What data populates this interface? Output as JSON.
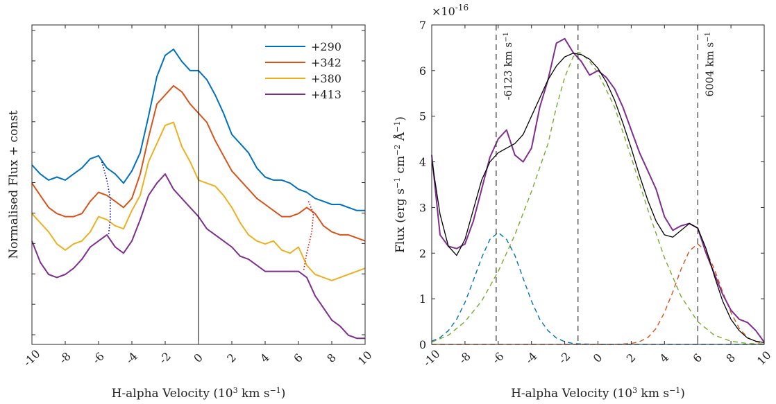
{
  "chart_data": [
    {
      "type": "line",
      "xlabel": "H-alpha Velocity (10",
      "xlabel_sup": "3",
      "xlabel_tail": " km s",
      "xlabel_sup2": "−1",
      "xlabel_end": ")",
      "ylabel": "Normalised Flux + const",
      "xlim": [
        -10,
        10
      ],
      "xticks": [
        "-10",
        "-8",
        "-6",
        "-4",
        "-2",
        "0",
        "2",
        "4",
        "6",
        "8",
        "10"
      ],
      "legend_position": "top-right",
      "grid": false,
      "series": [
        {
          "name": "+290",
          "color": "#0072BD",
          "x": [
            -10,
            -9.5,
            -9,
            -8.5,
            -8,
            -7.5,
            -7,
            -6.5,
            -6,
            -5.5,
            -5,
            -4.5,
            -4,
            -3.5,
            -3,
            -2.5,
            -2,
            -1.5,
            -1,
            -0.5,
            0,
            0.5,
            1,
            1.5,
            2,
            2.5,
            3,
            3.5,
            4,
            4.5,
            5,
            5.5,
            6,
            6.5,
            7,
            7.5,
            8,
            8.5,
            9,
            9.5,
            10
          ],
          "y": [
            0.39,
            0.36,
            0.34,
            0.35,
            0.34,
            0.36,
            0.38,
            0.41,
            0.42,
            0.38,
            0.36,
            0.33,
            0.37,
            0.43,
            0.55,
            0.68,
            0.75,
            0.77,
            0.73,
            0.7,
            0.7,
            0.67,
            0.62,
            0.56,
            0.49,
            0.46,
            0.43,
            0.38,
            0.35,
            0.34,
            0.34,
            0.33,
            0.31,
            0.3,
            0.28,
            0.27,
            0.26,
            0.26,
            0.25,
            0.24,
            0.24
          ]
        },
        {
          "name": "+342",
          "color": "#D95319",
          "x": [
            -10,
            -9.5,
            -9,
            -8.5,
            -8,
            -7.5,
            -7,
            -6.5,
            -6,
            -5.5,
            -5,
            -4.5,
            -4,
            -3.5,
            -3,
            -2.5,
            -2,
            -1.5,
            -1,
            -0.5,
            0,
            0.5,
            1,
            1.5,
            2,
            2.5,
            3,
            3.5,
            4,
            4.5,
            5,
            5.5,
            6,
            6.5,
            7,
            7.5,
            8,
            8.5,
            9,
            9.5,
            10
          ],
          "y": [
            0.33,
            0.29,
            0.25,
            0.23,
            0.22,
            0.22,
            0.23,
            0.27,
            0.3,
            0.29,
            0.27,
            0.25,
            0.28,
            0.36,
            0.48,
            0.59,
            0.62,
            0.65,
            0.63,
            0.59,
            0.56,
            0.53,
            0.47,
            0.42,
            0.37,
            0.34,
            0.31,
            0.28,
            0.26,
            0.24,
            0.22,
            0.22,
            0.23,
            0.25,
            0.23,
            0.19,
            0.17,
            0.16,
            0.16,
            0.15,
            0.14
          ]
        },
        {
          "name": "+380",
          "color": "#EDB120",
          "x": [
            -10,
            -9.5,
            -9,
            -8.5,
            -8,
            -7.5,
            -7,
            -6.5,
            -6,
            -5.5,
            -5,
            -4.5,
            -4,
            -3.5,
            -3,
            -2.5,
            -2,
            -1.5,
            -1,
            -0.5,
            0,
            0.5,
            1,
            1.5,
            2,
            2.5,
            3,
            3.5,
            4,
            4.5,
            5,
            5.5,
            6,
            6.5,
            7,
            7.5,
            8,
            8.5,
            9,
            9.5,
            10
          ],
          "y": [
            0.23,
            0.2,
            0.17,
            0.13,
            0.11,
            0.13,
            0.14,
            0.17,
            0.22,
            0.21,
            0.19,
            0.18,
            0.24,
            0.29,
            0.4,
            0.46,
            0.52,
            0.53,
            0.45,
            0.4,
            0.34,
            0.33,
            0.32,
            0.29,
            0.25,
            0.2,
            0.16,
            0.14,
            0.13,
            0.14,
            0.11,
            0.1,
            0.12,
            0.06,
            0.03,
            0.02,
            0.01,
            0.02,
            0.03,
            0.04,
            0.05
          ]
        },
        {
          "name": "+413",
          "color": "#7E2F8E",
          "x": [
            -10,
            -9.5,
            -9,
            -8.5,
            -8,
            -7.5,
            -7,
            -6.5,
            -6,
            -5.5,
            -5,
            -4.5,
            -4,
            -3.5,
            -3,
            -2.5,
            -2,
            -1.5,
            -1,
            -0.5,
            0,
            0.5,
            1,
            1.5,
            2,
            2.5,
            3,
            3.5,
            4,
            4.5,
            5,
            5.5,
            6,
            6.5,
            7,
            7.5,
            8,
            8.5,
            9,
            9.5,
            10
          ],
          "y": [
            0.14,
            0.07,
            0.03,
            0.02,
            0.03,
            0.05,
            0.08,
            0.12,
            0.14,
            0.16,
            0.12,
            0.1,
            0.14,
            0.21,
            0.29,
            0.33,
            0.36,
            0.31,
            0.28,
            0.25,
            0.22,
            0.18,
            0.16,
            0.14,
            0.12,
            0.09,
            0.08,
            0.06,
            0.04,
            0.04,
            0.04,
            0.04,
            0.04,
            0.02,
            -0.04,
            -0.08,
            -0.12,
            -0.14,
            -0.17,
            -0.18,
            -0.18
          ]
        }
      ],
      "markers": [
        {
          "color": "#0000CC",
          "x": [
            -5.8,
            -5.5,
            -5.3,
            -5.3,
            -5.4
          ],
          "y": [
            0.4,
            0.34,
            0.28,
            0.21,
            0.16
          ]
        },
        {
          "color": "#DD0000",
          "x": [
            6.6,
            6.9,
            6.8,
            6.5,
            6.3
          ],
          "y": [
            0.27,
            0.23,
            0.17,
            0.1,
            0.04
          ]
        }
      ],
      "ylim": [
        -0.2,
        0.85
      ]
    },
    {
      "type": "line",
      "xlabel": "H-alpha Velocity (10",
      "xlabel_sup": "3",
      "xlabel_tail": " km s",
      "xlabel_sup2": "−1",
      "xlabel_end": ")",
      "ylabel": "Flux (erg s",
      "ylabel_parts": [
        "Flux (erg s",
        "−1",
        " cm",
        "−2",
        " Å",
        "−1",
        ")"
      ],
      "xlim": [
        -10,
        10
      ],
      "ylim": [
        0,
        7
      ],
      "xticks": [
        "-10",
        "-8",
        "-6",
        "-4",
        "-2",
        "0",
        "2",
        "4",
        "6",
        "8",
        "10"
      ],
      "yticks": [
        "0",
        "1",
        "2",
        "3",
        "4",
        "5",
        "6",
        "7"
      ],
      "y_exponent": "×10",
      "y_exponent_power": "-16",
      "grid": false,
      "vlines": [
        -6.123,
        -1.2,
        6.004
      ],
      "annotations": [
        "-6123 km s",
        "6004 km s"
      ],
      "annotation_sup": "−1",
      "series": [
        {
          "color": "#7E2F8E",
          "style": "solid",
          "x": [
            -10,
            -9.5,
            -9,
            -8.5,
            -8,
            -7.5,
            -7,
            -6.5,
            -6,
            -5.5,
            -5,
            -4.5,
            -4,
            -3.5,
            -3,
            -2.5,
            -2,
            -1.5,
            -1,
            -0.5,
            0,
            0.5,
            1,
            1.5,
            2,
            2.5,
            3,
            3.5,
            4,
            4.5,
            5,
            5.5,
            6,
            6.5,
            7,
            7.5,
            8,
            8.5,
            9,
            9.5,
            10
          ],
          "y": [
            4.15,
            2.4,
            2.15,
            2.1,
            2.2,
            2.7,
            3.4,
            4.1,
            4.5,
            4.7,
            4.15,
            4.0,
            4.3,
            5.2,
            5.8,
            6.6,
            6.7,
            6.4,
            6.2,
            5.9,
            6.0,
            5.85,
            5.6,
            5.2,
            4.7,
            4.2,
            3.8,
            3.4,
            2.8,
            2.5,
            2.6,
            2.65,
            2.55,
            2.0,
            1.55,
            1.1,
            0.75,
            0.55,
            0.48,
            0.3,
            0.05
          ]
        },
        {
          "color": "#000000",
          "style": "solid",
          "x": [
            -10,
            -9.5,
            -9,
            -8.5,
            -8,
            -7.5,
            -7,
            -6.5,
            -6,
            -5.5,
            -5,
            -4.5,
            -4,
            -3.5,
            -3,
            -2.5,
            -2,
            -1.5,
            -1,
            -0.5,
            0,
            0.5,
            1,
            1.5,
            2,
            2.5,
            3,
            3.5,
            4,
            4.5,
            5,
            5.5,
            6,
            6.5,
            7,
            7.5,
            8,
            8.5,
            9,
            9.5,
            10
          ],
          "y": [
            4.05,
            2.85,
            2.15,
            1.95,
            2.3,
            2.95,
            3.6,
            4.0,
            4.2,
            4.3,
            4.4,
            4.6,
            5.0,
            5.4,
            5.8,
            6.1,
            6.3,
            6.38,
            6.35,
            6.25,
            6.05,
            5.75,
            5.35,
            4.85,
            4.3,
            3.7,
            3.15,
            2.7,
            2.4,
            2.35,
            2.5,
            2.65,
            2.55,
            2.1,
            1.5,
            0.95,
            0.55,
            0.3,
            0.14,
            0.07,
            0.04
          ]
        },
        {
          "color": "#0072BD",
          "style": "dashed",
          "x": [
            -10,
            -9.5,
            -9,
            -8.5,
            -8,
            -7.5,
            -7,
            -6.5,
            -6,
            -5.5,
            -5,
            -4.5,
            -4,
            -3.5,
            -3,
            -2.5,
            -2,
            -1.5,
            -1,
            0,
            1,
            2,
            4,
            6,
            8,
            10
          ],
          "y": [
            0.07,
            0.15,
            0.3,
            0.55,
            0.92,
            1.4,
            1.9,
            2.3,
            2.45,
            2.3,
            1.95,
            1.45,
            0.95,
            0.55,
            0.3,
            0.14,
            0.06,
            0.02,
            0.01,
            0,
            0,
            0,
            0,
            0,
            0,
            0
          ]
        },
        {
          "color": "#77AC30",
          "style": "dashed",
          "x": [
            -10,
            -9,
            -8,
            -7,
            -6,
            -5,
            -4,
            -3,
            -2.5,
            -2,
            -1.5,
            -1.2,
            -1,
            -0.5,
            0,
            1,
            2,
            3,
            4,
            5,
            6,
            7,
            8,
            9,
            10
          ],
          "y": [
            0.05,
            0.2,
            0.5,
            0.95,
            1.6,
            2.4,
            3.35,
            4.4,
            5.2,
            5.85,
            6.3,
            6.4,
            6.38,
            6.2,
            5.95,
            5.2,
            4.1,
            2.95,
            1.9,
            1.05,
            0.5,
            0.2,
            0.07,
            0.02,
            0.01
          ]
        },
        {
          "color": "#D95319",
          "style": "dashed",
          "x": [
            -10,
            -6,
            -2,
            0,
            1,
            2,
            2.5,
            3,
            3.5,
            4,
            4.5,
            5,
            5.5,
            6,
            6.5,
            7,
            7.5,
            8,
            8.5,
            9,
            9.5,
            10
          ],
          "y": [
            0,
            0,
            0,
            0,
            0,
            0.02,
            0.06,
            0.15,
            0.35,
            0.7,
            1.15,
            1.65,
            2.05,
            2.2,
            2.05,
            1.65,
            1.15,
            0.7,
            0.35,
            0.15,
            0.06,
            0.02
          ]
        }
      ]
    }
  ]
}
